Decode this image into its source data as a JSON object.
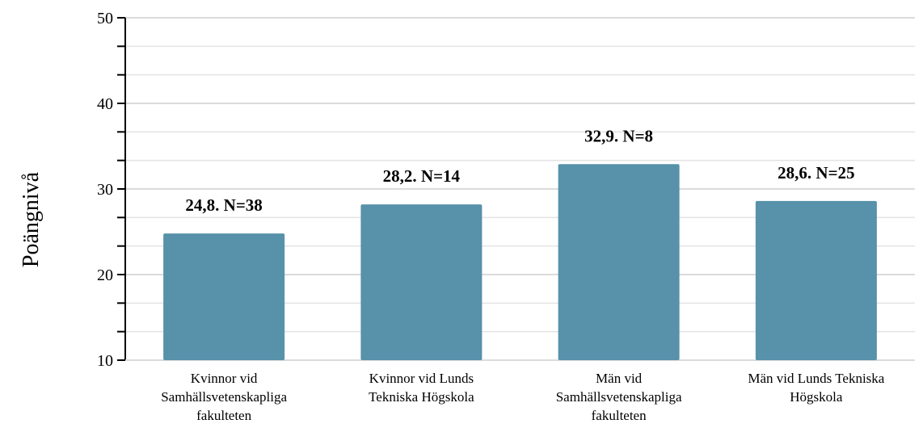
{
  "chart_data": {
    "type": "bar",
    "title": "",
    "ylabel": "Poängnivå",
    "xlabel": "",
    "ylim": [
      10,
      50
    ],
    "yticks": [
      10,
      20,
      30,
      40,
      50
    ],
    "grid": true,
    "legend": "none",
    "bar_color": "#5791aa",
    "categories": [
      [
        "Kvinnor vid",
        "Samhällsvetenskapliga",
        "fakulteten"
      ],
      [
        "Kvinnor vid Lunds",
        "Tekniska Högskola"
      ],
      [
        "Män vid",
        "Samhällsvetenskapliga",
        "fakulteten"
      ],
      [
        "Män vid Lunds Tekniska",
        "Högskola"
      ]
    ],
    "values": [
      24.8,
      28.2,
      32.9,
      28.6
    ],
    "data_labels": [
      "24,8. N=38",
      "28,2. N=14",
      "32,9. N=8",
      "28,6. N=25"
    ]
  }
}
